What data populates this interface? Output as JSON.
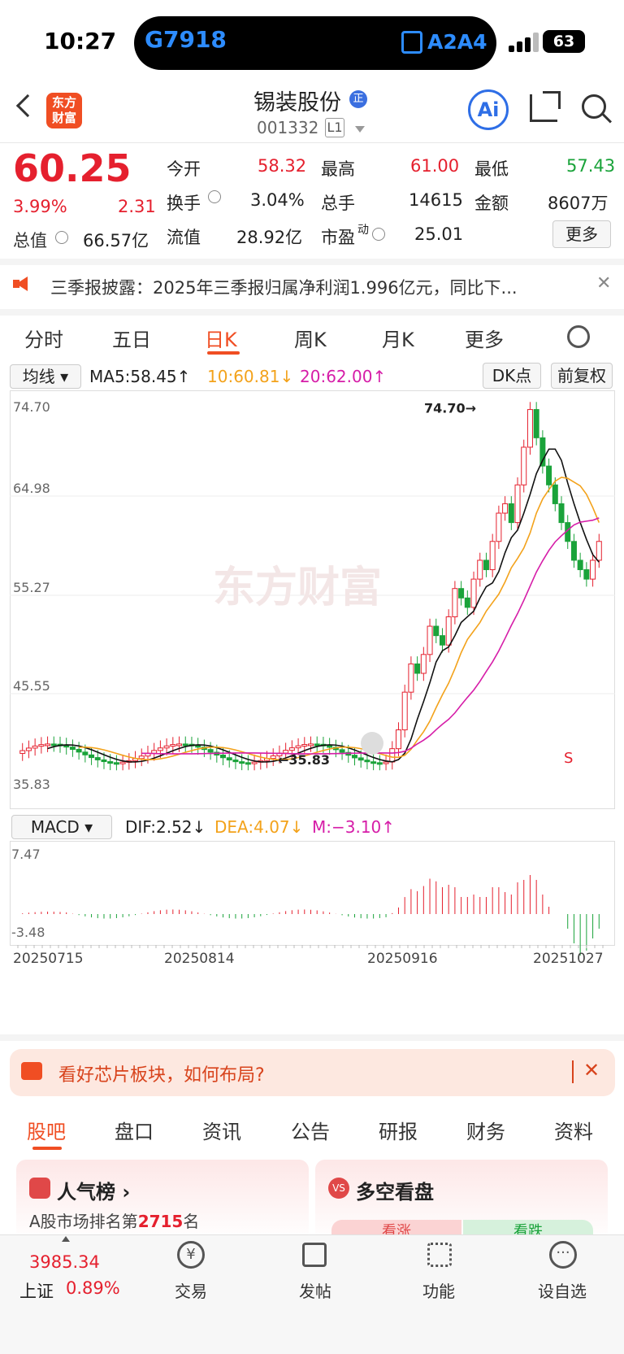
{
  "status": {
    "time": "10:27",
    "island_left": "G7918",
    "island_right": "A2A4",
    "battery": "63"
  },
  "header": {
    "logo": "东方财富",
    "title": "锡装股份",
    "badge": "正",
    "code": "001332",
    "board": "L1"
  },
  "quote": {
    "price": "60.25",
    "pct": "3.99%",
    "chg": "2.31",
    "open_l": "今开",
    "open": "58.32",
    "high_l": "最高",
    "high": "61.00",
    "low_l": "最低",
    "low": "57.43",
    "turn_l": "换手",
    "turn": "3.04%",
    "vol_l": "总手",
    "vol": "14615",
    "amt_l": "金额",
    "amt": "8607万",
    "mcap_l": "总值",
    "mcap": "66.57亿",
    "flt_l": "流值",
    "flt": "28.92亿",
    "pe_l": "市盈",
    "pe_sup": "动",
    "pe": "25.01",
    "more": "更多"
  },
  "announce": "三季报披露：2025年三季报归属净利润1.996亿元，同比下...",
  "tabs": [
    "分时",
    "五日",
    "日K",
    "周K",
    "月K",
    "更多"
  ],
  "kline": {
    "ind": "均线",
    "ma5": "MA5:58.45↑",
    "ma10": "10:60.81↓",
    "ma20": "20:62.00↑",
    "dk": "DK点",
    "fq": "前复权",
    "y": [
      "74.70",
      "64.98",
      "55.27",
      "45.55",
      "35.83"
    ],
    "max_label": "74.70→",
    "min_label": "←35.83",
    "watermark": "东方财富",
    "s": "S"
  },
  "macd": {
    "ind": "MACD",
    "dif": "DIF:2.52↓",
    "dea": "DEA:4.07↓",
    "m": "M:−3.10↑",
    "ymax": "7.47",
    "ymin": "-3.48",
    "dates": [
      "20250715",
      "20250814",
      "20250916",
      "20251027"
    ]
  },
  "banner": "看好芯片板块，如何布局?",
  "btabs": [
    "股吧",
    "盘口",
    "资讯",
    "公告",
    "研报",
    "财务",
    "资料"
  ],
  "cards": {
    "hot": "人气榜",
    "rank_pre": "A股市场排名第",
    "rank": "2715",
    "rank_suf": "名",
    "vs": "多空看盘",
    "up": "看涨",
    "down": "看跌"
  },
  "nav": {
    "index": "3985.34",
    "index_name": "上证",
    "index_pct": "0.89%",
    "trade": "交易",
    "post": "发帖",
    "func": "功能",
    "fav": "设自选"
  }
}
